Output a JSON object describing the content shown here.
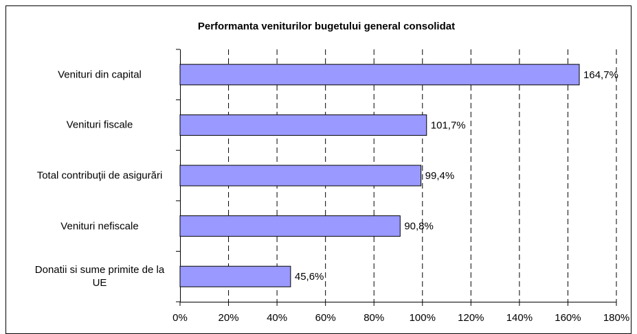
{
  "chart_data": {
    "type": "bar",
    "orientation": "horizontal",
    "title": "Performanta veniturilor bugetului general consolidat",
    "categories": [
      "Venituri din capital",
      "Venituri fiscale",
      "Total contribuţii de asigurări",
      "Venituri nefiscale",
      "Donatii si sume primite de la UE"
    ],
    "values": [
      164.7,
      101.7,
      99.4,
      90.8,
      45.6
    ],
    "value_labels": [
      "164,7%",
      "101,7%",
      "99,4%",
      "90,8%",
      "45,6%"
    ],
    "color": "#9999ff",
    "xlim": [
      0,
      180
    ],
    "xticks": [
      {
        "value": 0,
        "label": "0%"
      },
      {
        "value": 20,
        "label": "20%"
      },
      {
        "value": 40,
        "label": "40%"
      },
      {
        "value": 60,
        "label": "60%"
      },
      {
        "value": 80,
        "label": "80%"
      },
      {
        "value": 100,
        "label": "100%"
      },
      {
        "value": 120,
        "label": "120%"
      },
      {
        "value": 140,
        "label": "140%"
      },
      {
        "value": 160,
        "label": "160%"
      },
      {
        "value": 180,
        "label": "180%"
      }
    ],
    "grid": true
  }
}
